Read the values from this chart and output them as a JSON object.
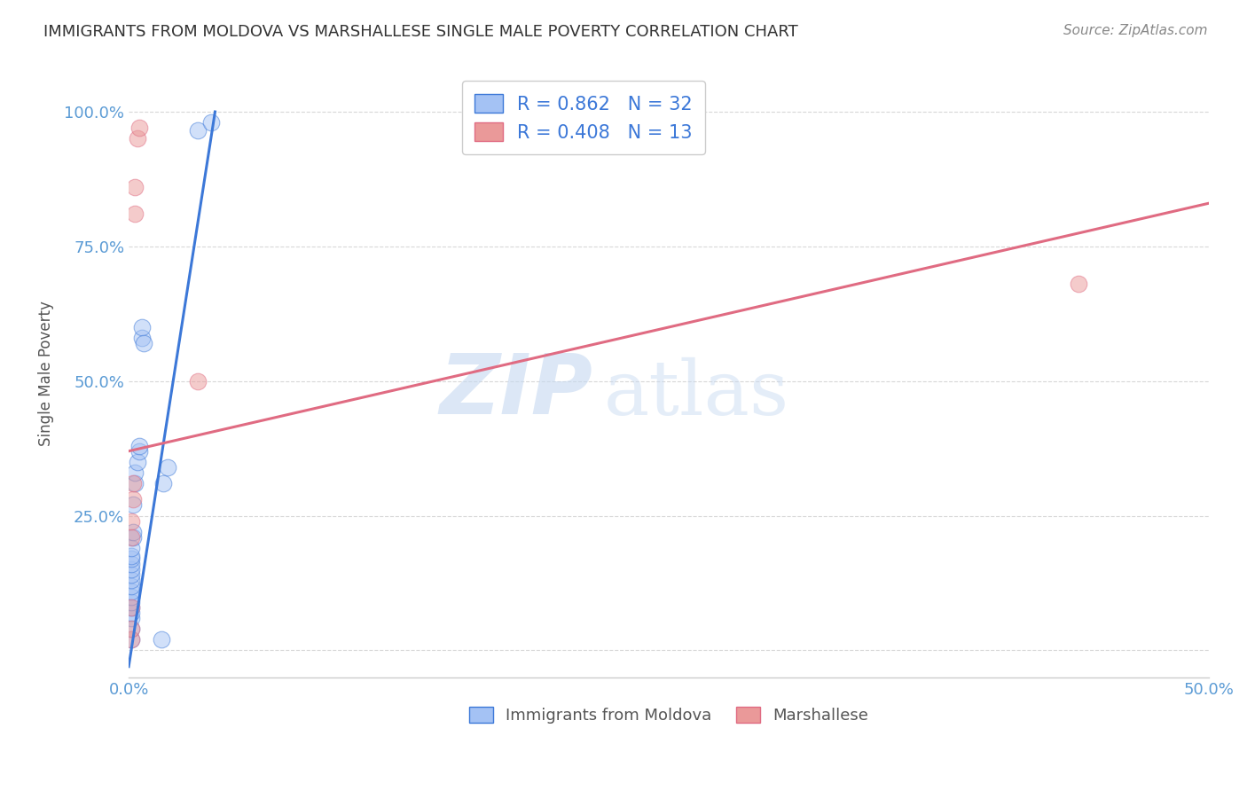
{
  "title": "IMMIGRANTS FROM MOLDOVA VS MARSHALLESE SINGLE MALE POVERTY CORRELATION CHART",
  "source": "Source: ZipAtlas.com",
  "ylabel": "Single Male Poverty",
  "x_ticks": [
    0.0,
    0.1,
    0.2,
    0.3,
    0.4,
    0.5
  ],
  "x_tick_labels": [
    "0.0%",
    "",
    "",
    "",
    "",
    "50.0%"
  ],
  "y_ticks": [
    0.0,
    0.25,
    0.5,
    0.75,
    1.0
  ],
  "y_tick_labels": [
    "",
    "25.0%",
    "50.0%",
    "75.0%",
    "100.0%"
  ],
  "xlim": [
    0.0,
    0.5
  ],
  "ylim": [
    -0.05,
    1.08
  ],
  "blue_R": 0.862,
  "blue_N": 32,
  "pink_R": 0.408,
  "pink_N": 13,
  "blue_color": "#a4c2f4",
  "pink_color": "#ea9999",
  "blue_line_color": "#3c78d8",
  "pink_line_color": "#e06b82",
  "blue_scatter": [
    [
      0.001,
      0.02
    ],
    [
      0.001,
      0.04
    ],
    [
      0.001,
      0.06
    ],
    [
      0.001,
      0.07
    ],
    [
      0.001,
      0.08
    ],
    [
      0.001,
      0.09
    ],
    [
      0.001,
      0.1
    ],
    [
      0.001,
      0.11
    ],
    [
      0.001,
      0.12
    ],
    [
      0.001,
      0.13
    ],
    [
      0.001,
      0.14
    ],
    [
      0.001,
      0.15
    ],
    [
      0.001,
      0.16
    ],
    [
      0.001,
      0.17
    ],
    [
      0.001,
      0.175
    ],
    [
      0.001,
      0.19
    ],
    [
      0.002,
      0.21
    ],
    [
      0.002,
      0.22
    ],
    [
      0.002,
      0.27
    ],
    [
      0.003,
      0.31
    ],
    [
      0.003,
      0.33
    ],
    [
      0.004,
      0.35
    ],
    [
      0.005,
      0.37
    ],
    [
      0.005,
      0.38
    ],
    [
      0.006,
      0.58
    ],
    [
      0.006,
      0.6
    ],
    [
      0.007,
      0.57
    ],
    [
      0.015,
      0.02
    ],
    [
      0.016,
      0.31
    ],
    [
      0.018,
      0.34
    ],
    [
      0.032,
      0.965
    ],
    [
      0.038,
      0.98
    ]
  ],
  "pink_scatter": [
    [
      0.001,
      0.02
    ],
    [
      0.001,
      0.04
    ],
    [
      0.001,
      0.08
    ],
    [
      0.001,
      0.21
    ],
    [
      0.001,
      0.24
    ],
    [
      0.002,
      0.28
    ],
    [
      0.002,
      0.31
    ],
    [
      0.003,
      0.81
    ],
    [
      0.003,
      0.86
    ],
    [
      0.004,
      0.95
    ],
    [
      0.005,
      0.97
    ],
    [
      0.032,
      0.5
    ],
    [
      0.44,
      0.68
    ]
  ],
  "blue_line": [
    [
      0.0,
      -0.03
    ],
    [
      0.04,
      1.0
    ]
  ],
  "pink_line": [
    [
      0.0,
      0.37
    ],
    [
      0.5,
      0.83
    ]
  ],
  "watermark_zip": "ZIP",
  "watermark_atlas": "atlas",
  "grid_color": "#d8d8d8",
  "background_color": "#ffffff",
  "title_color": "#333333",
  "tick_label_color": "#5b9bd5",
  "source_color": "#888888",
  "ylabel_color": "#555555"
}
